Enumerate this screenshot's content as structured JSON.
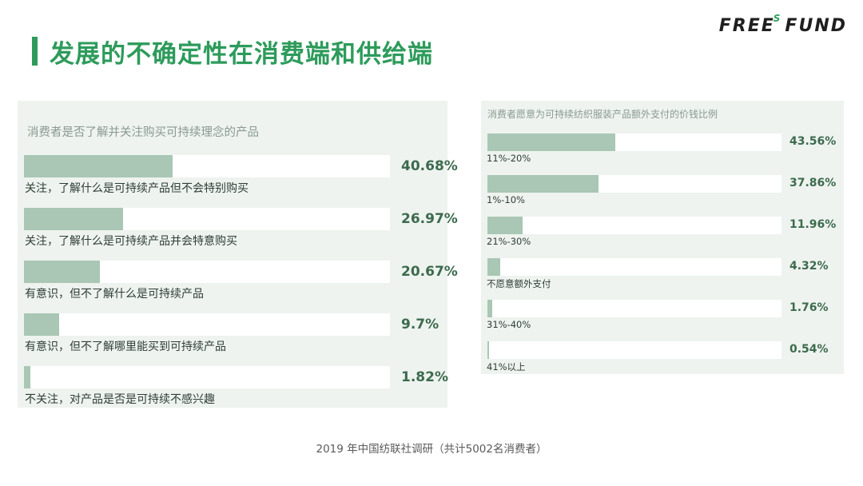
{
  "brand": {
    "part1": "FREE",
    "superscript": "S",
    "part2": "FUND"
  },
  "header": {
    "title": "发展的不确定性在消费端和供给端"
  },
  "chart_data": [
    {
      "type": "bar",
      "orientation": "horizontal",
      "title": "消费者是否了解并关注购买可持续理念的产品",
      "categories": [
        "关注，了解什么是可持续产品但不会特别购买",
        "关注，了解什么是可持续产品并会特意购买",
        "有意识，但不了解什么是可持续产品",
        "有意识，但不了解哪里能买到可持续产品",
        "不关注，对产品是否是可持续不感兴趣"
      ],
      "values": [
        40.68,
        26.97,
        20.67,
        9.7,
        1.82
      ],
      "labels": [
        "40.68%",
        "26.97%",
        "20.67%",
        "9.7%",
        "1.82%"
      ],
      "xlim": [
        0,
        100
      ],
      "unit": "%"
    },
    {
      "type": "bar",
      "orientation": "horizontal",
      "title": "消费者愿意为可持续纺织服装产品额外支付的价钱比例",
      "categories": [
        "11%-20%",
        "1%-10%",
        "21%-30%",
        "不愿意额外支付",
        "31%-40%",
        "41%以上"
      ],
      "values": [
        43.56,
        37.86,
        11.96,
        4.32,
        1.76,
        0.54
      ],
      "labels": [
        "43.56%",
        "37.86%",
        "11.96%",
        "4.32%",
        "1.76%",
        "0.54%"
      ],
      "xlim": [
        0,
        100
      ],
      "unit": "%"
    }
  ],
  "footer": {
    "source": "2019 年中国纺联社调研（共计5002名消费者）"
  }
}
